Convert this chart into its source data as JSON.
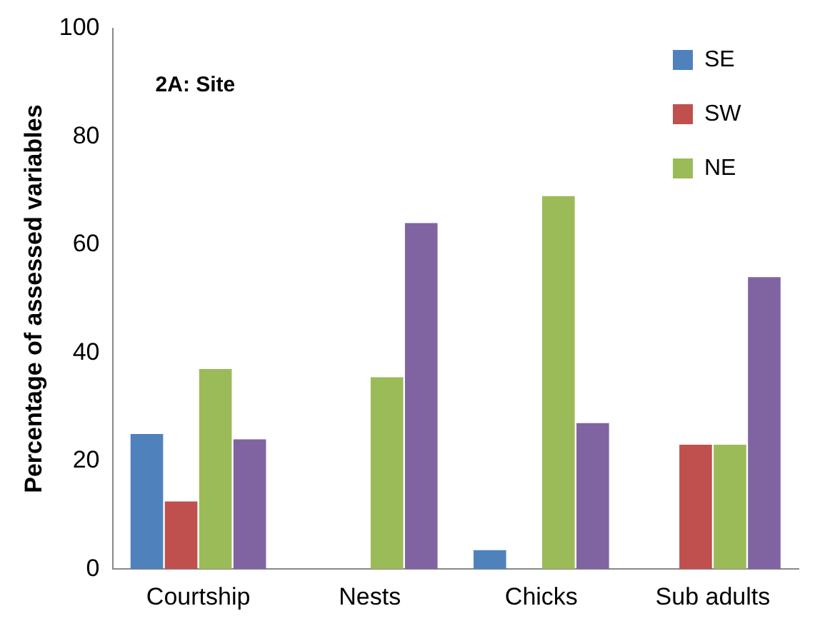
{
  "chart_data": {
    "type": "bar",
    "title": "2A: Site",
    "ylabel": "Percentage of assessed variables",
    "categories": [
      "Courtship",
      "Nests",
      "Chicks",
      "Sub adults"
    ],
    "series": [
      {
        "name": "SE",
        "color": "#4f81bd",
        "values": [
          25,
          0,
          3.5,
          0
        ]
      },
      {
        "name": "SW",
        "color": "#c0504d",
        "values": [
          12.5,
          0,
          0,
          23
        ]
      },
      {
        "name": "NE",
        "color": "#9bbb59",
        "values": [
          37,
          35.5,
          69,
          23
        ]
      },
      {
        "color": "#8064a2",
        "values": [
          24,
          64,
          27,
          54
        ]
      }
    ],
    "ylim": [
      0,
      100
    ],
    "yticks": [
      0,
      20,
      40,
      60,
      80,
      100
    ],
    "grid": false,
    "legend": "top right"
  }
}
